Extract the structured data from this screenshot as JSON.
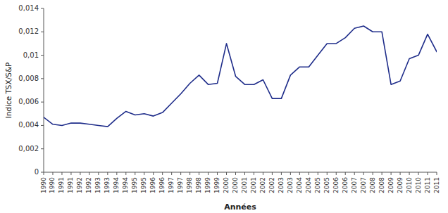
{
  "chart_data": {
    "type": "line",
    "xlabel": "Années",
    "ylabel": "Indice TSX/S&P",
    "color": "#1F2D8A",
    "x": [
      1990.0,
      1990.5,
      1991.0,
      1991.5,
      1992.0,
      1992.5,
      1993.0,
      1993.5,
      1994.0,
      1994.5,
      1995.0,
      1995.5,
      1996.0,
      1996.5,
      1997.0,
      1997.5,
      1998.0,
      1998.5,
      1999.0,
      1999.5,
      2000.0,
      2000.5,
      2001.0,
      2001.5,
      2002.0,
      2002.5,
      2003.0,
      2003.5,
      2004.0,
      2004.5,
      2005.0,
      2005.5,
      2006.0,
      2006.5,
      2007.0,
      2007.5,
      2008.0,
      2008.5,
      2009.0,
      2009.5,
      2010.0,
      2010.5,
      2011.0,
      2011.5
    ],
    "values": [
      0.0047,
      0.0041,
      0.004,
      0.0042,
      0.0042,
      0.0041,
      0.004,
      0.0039,
      0.0046,
      0.0052,
      0.0049,
      0.005,
      0.0048,
      0.0051,
      0.0059,
      0.0067,
      0.0076,
      0.0083,
      0.0075,
      0.0076,
      0.011,
      0.0082,
      0.0075,
      0.0075,
      0.0079,
      0.0063,
      0.0063,
      0.0083,
      0.009,
      0.009,
      0.01,
      0.011,
      0.011,
      0.0115,
      0.0123,
      0.0125,
      0.012,
      0.012,
      0.0075,
      0.0078,
      0.0097,
      0.01,
      0.0118,
      0.0103
    ],
    "xlim": [
      1990.0,
      2011.5
    ],
    "xticks": [
      1990,
      {
        "value": 1990.5,
        "label": "1990"
      },
      1991,
      {
        "value": 1991.5,
        "label": "1991"
      },
      1992,
      {
        "value": 1992.5,
        "label": "1992"
      },
      1993,
      {
        "value": 1993.5,
        "label": "1993"
      },
      1994,
      {
        "value": 1994.5,
        "label": "1994"
      },
      1995,
      {
        "value": 1995.5,
        "label": "1995"
      },
      1996,
      {
        "value": 1996.5,
        "label": "1996"
      },
      1997,
      {
        "value": 1997.5,
        "label": "1997"
      },
      1998,
      {
        "value": 1998.5,
        "label": "1998"
      },
      1999,
      {
        "value": 1999.5,
        "label": "1999"
      },
      2000,
      {
        "value": 2000.5,
        "label": "2000"
      },
      2001,
      {
        "value": 2001.5,
        "label": "2001"
      },
      2002,
      {
        "value": 2002.5,
        "label": "2002"
      },
      2003,
      {
        "value": 2003.5,
        "label": "2003"
      },
      2004,
      {
        "value": 2004.5,
        "label": "2004"
      },
      2005,
      {
        "value": 2005.5,
        "label": "2005"
      },
      2006,
      {
        "value": 2006.5,
        "label": "2006"
      },
      2007,
      {
        "value": 2007.5,
        "label": "2007"
      },
      2008,
      {
        "value": 2008.5,
        "label": "2008"
      },
      2009,
      {
        "value": 2009.5,
        "label": "2009"
      },
      2010,
      {
        "value": 2010.5,
        "label": "2010"
      },
      2011,
      {
        "value": 2011.5,
        "label": "2011"
      }
    ],
    "ylim": [
      0,
      0.014
    ],
    "yticks": [
      0,
      {
        "value": 0.002,
        "label": "0,002"
      },
      {
        "value": 0.004,
        "label": "0,004"
      },
      {
        "value": 0.006,
        "label": "0,006"
      },
      {
        "value": 0.008,
        "label": "0,008"
      },
      {
        "value": 0.01,
        "label": "0,01"
      },
      {
        "value": 0.012,
        "label": "0,012"
      },
      {
        "value": 0.014,
        "label": "0,014"
      }
    ],
    "grid": false
  }
}
